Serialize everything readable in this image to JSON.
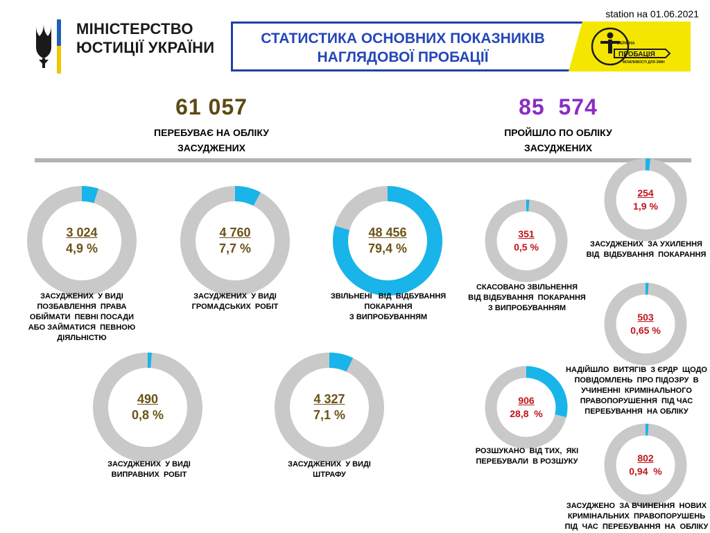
{
  "header": {
    "date": "station на 01.06.2021",
    "ministry_line1": "МІНІСТЕРСТВО",
    "ministry_line2": "ЮСТИЦІЇ УКРАЇНИ",
    "banner_line1": "СТАТИСТИКА ОСНОВНИХ ПОКАЗНИКІВ",
    "banner_line2": "НАГЛЯДОВОЇ ПРОБАЦІЇ",
    "logo_small": "УКРАЇНА",
    "logo_big": "ПРОБАЦІЯ",
    "logo_tagline": "МОЖЛИВОСТІ ДЛЯ ЗМІН"
  },
  "left_total": {
    "value": "61 057",
    "label_line1": "ПЕРЕБУВАЄ НА ОБЛІКУ",
    "label_line2": "ЗАСУДЖЕНИХ"
  },
  "right_total": {
    "value": "85  574",
    "label_line1": "ПРОЙШЛО ПО ОБЛІКУ",
    "label_line2": "ЗАСУДЖЕНИХ"
  },
  "colors": {
    "ring": "#c9c9c9",
    "fill": "#18b4ea",
    "left_value": "#6b5317",
    "right_value": "#c0141a",
    "left_total": "#5b4a12",
    "right_total": "#8a2cc5",
    "banner_blue": "#2446b8",
    "banner_yellow": "#f5e600"
  },
  "chart_data": [
    {
      "type": "pie",
      "group": "left",
      "values": [
        {
          "count": "3 024",
          "percent_label": "4,9 %",
          "fraction": 0.049,
          "caption": [
            "ЗАСУДЖЕНИХ  У ВИДІ",
            "ПОЗБАВЛЕННЯ  ПРАВА",
            "ОБІЙМАТИ  ПЕВНІ ПОСАДИ",
            "АБО ЗАЙМАТИСЯ  ПЕВНОЮ",
            "ДІЯЛЬНІСТЮ"
          ]
        },
        {
          "count": "4 760",
          "percent_label": "7,7 %",
          "fraction": 0.077,
          "caption": [
            "ЗАСУДЖЕНИХ  У ВИДІ",
            "ГРОМАДСЬКИХ  РОБІТ"
          ]
        },
        {
          "count": "48 456",
          "percent_label": "79,4 %",
          "fraction": 0.794,
          "caption": [
            "ЗВІЛЬНЕНІ   ВІД  ВІДБУВАННЯ",
            "ПОКАРАННЯ",
            "З ВИПРОБУВАННЯМ"
          ]
        },
        {
          "count": "490",
          "percent_label": "0,8 %",
          "fraction": 0.008,
          "caption": [
            "ЗАСУДЖЕНИХ  У ВИДІ",
            "ВИПРАВНИХ  РОБІТ"
          ]
        },
        {
          "count": "4 327",
          "percent_label": "7,1 %",
          "fraction": 0.071,
          "caption": [
            "ЗАСУДЖЕНИХ  У ВИДІ",
            "ШТРАФУ"
          ]
        }
      ]
    },
    {
      "type": "pie",
      "group": "right",
      "values": [
        {
          "count": "351",
          "percent_label": "0,5 %",
          "fraction": 0.005,
          "caption": [
            "СКАСОВАНО ЗВІЛЬНЕННЯ",
            "ВІД ВІДБУВАННЯ  ПОКАРАННЯ",
            "З ВИПРОБУВАННЯМ"
          ]
        },
        {
          "count": "254",
          "percent_label": "1,9 %",
          "fraction": 0.019,
          "caption": [
            "ЗАСУДЖЕНИХ  ЗА УХИЛЕННЯ",
            "ВІД  ВІДБУВАННЯ  ПОКАРАННЯ"
          ]
        },
        {
          "count": "503",
          "percent_label": "0,65 %",
          "fraction": 0.0065,
          "caption": [
            "НАДІЙШЛО  ВИТЯГІВ  З ЄРДР  ЩОДО",
            "ПОВІДОМЛЕНЬ  ПРО ПІДОЗРУ  В",
            "УЧИНЕННІ  КРИМІНАЛЬНОГО",
            "ПРАВОПОРУШЕННЯ  ПІД ЧАС",
            "ПЕРЕБУВАННЯ  НА ОБЛІКУ"
          ]
        },
        {
          "count": "906",
          "percent_label": "28,8  %",
          "fraction": 0.288,
          "caption": [
            "РОЗШУКАНО  ВІД ТИХ,  ЯКІ",
            "ПЕРЕБУВАЛИ  В РОЗШУКУ"
          ]
        },
        {
          "count": "802",
          "percent_label": "0,94  %",
          "fraction": 0.0094,
          "caption": [
            "ЗАСУДЖЕНО  ЗА ВЧИНЕННЯ  НОВИХ",
            "КРИМІНАЛЬНИХ  ПРАВОПОРУШЕНЬ",
            "ПІД  ЧАС  ПЕРЕБУВАННЯ  НА  ОБЛІКУ"
          ]
        }
      ]
    }
  ]
}
